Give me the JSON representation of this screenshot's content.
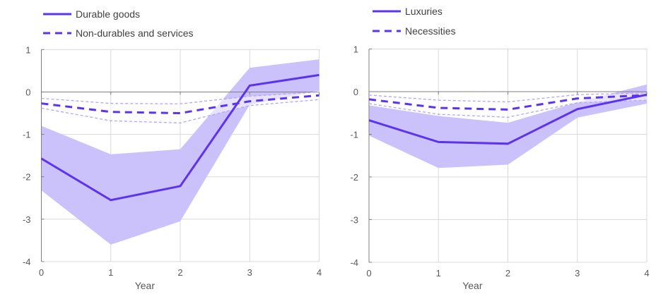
{
  "colors": {
    "line": "#5b33f0",
    "band": "#cbc2fb",
    "band_light": "#b3a3f7",
    "grid": "#d9d9d9",
    "axis": "#7f7f7f"
  },
  "chart_data": [
    {
      "type": "line",
      "xlabel": "Year",
      "ylabel": "",
      "xlim": [
        0,
        4
      ],
      "ylim": [
        -4,
        1
      ],
      "x": [
        0,
        1,
        2,
        3,
        4
      ],
      "x_ticks": [
        "0",
        "1",
        "2",
        "3",
        "4"
      ],
      "y_ticks": [
        "1",
        "0",
        "-1",
        "-2",
        "-3",
        "-4"
      ],
      "grid": true,
      "legend_position": "top-left",
      "series": [
        {
          "name": "Durable goods",
          "style": "solid",
          "values": [
            -1.57,
            -2.55,
            -2.22,
            0.15,
            0.4
          ],
          "upper": [
            -0.8,
            -1.47,
            -1.35,
            0.57,
            0.77
          ],
          "lower": [
            -2.32,
            -3.6,
            -3.05,
            -0.3,
            0.03
          ]
        },
        {
          "name": "Non-durables and services",
          "style": "dashed",
          "values": [
            -0.27,
            -0.47,
            -0.5,
            -0.22,
            -0.08
          ],
          "upper": [
            -0.15,
            -0.27,
            -0.28,
            -0.1,
            0.0
          ],
          "lower": [
            -0.38,
            -0.68,
            -0.73,
            -0.32,
            -0.18
          ]
        }
      ]
    },
    {
      "type": "line",
      "xlabel": "Year",
      "ylabel": "",
      "xlim": [
        0,
        4
      ],
      "ylim": [
        -4,
        1
      ],
      "x": [
        0,
        1,
        2,
        3,
        4
      ],
      "x_ticks": [
        "0",
        "1",
        "2",
        "3",
        "4"
      ],
      "y_ticks": [
        "1",
        "0",
        "-1",
        "-2",
        "-3",
        "-4"
      ],
      "grid": true,
      "legend_position": "top-left",
      "series": [
        {
          "name": "Luxuries",
          "style": "solid",
          "values": [
            -0.67,
            -1.18,
            -1.22,
            -0.41,
            -0.07
          ],
          "upper": [
            -0.32,
            -0.57,
            -0.73,
            -0.25,
            0.17
          ],
          "lower": [
            -1.03,
            -1.79,
            -1.71,
            -0.61,
            -0.28
          ]
        },
        {
          "name": "Necessities",
          "style": "dashed",
          "values": [
            -0.18,
            -0.38,
            -0.42,
            -0.16,
            -0.08
          ],
          "upper": [
            -0.08,
            -0.2,
            -0.24,
            -0.07,
            -0.03
          ],
          "lower": [
            -0.28,
            -0.53,
            -0.6,
            -0.26,
            -0.2
          ]
        }
      ]
    }
  ]
}
